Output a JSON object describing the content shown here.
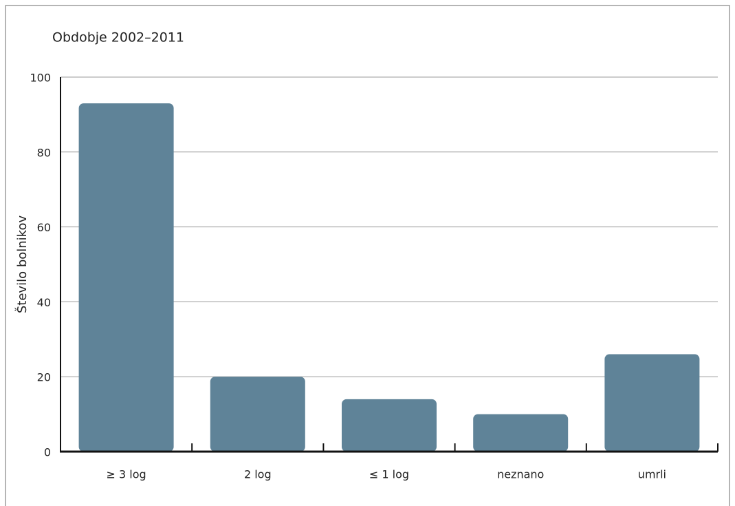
{
  "chart_data": {
    "type": "bar",
    "title": "Obdobje 2002–2011",
    "y_label": "Število bolnikov",
    "categories": [
      "≥ 3 log",
      "2 log",
      "≤ 1 log",
      "neznano",
      "umrli"
    ],
    "values": [
      93,
      20,
      14,
      10,
      26
    ],
    "color": "#5f8398",
    "ylim": [
      0,
      100
    ],
    "yticks": [
      0,
      20,
      40,
      60,
      80,
      100
    ],
    "grid": true
  }
}
